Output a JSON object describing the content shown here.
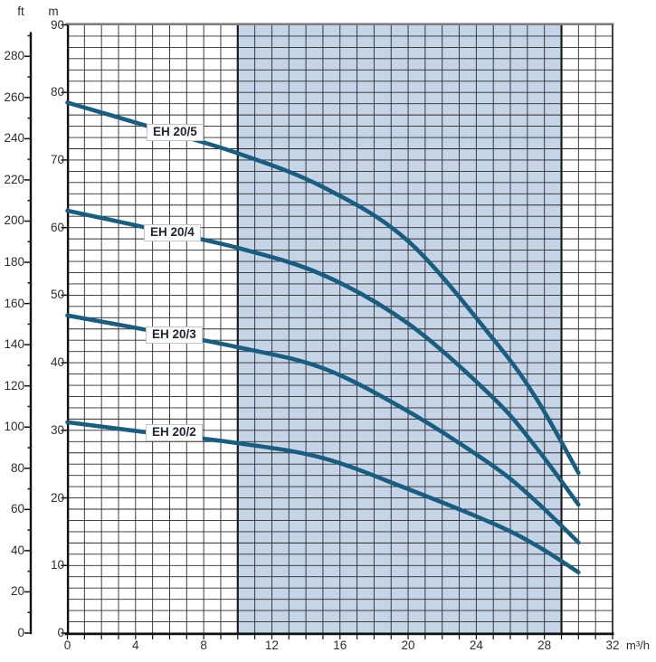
{
  "chart_data": {
    "type": "line",
    "title": "",
    "x_axis": {
      "unit_label": "m³/h",
      "min": 0,
      "max": 32,
      "major_tick_step": 4,
      "minor_tick_step": 1,
      "tick_labels": [
        "0",
        "4",
        "8",
        "12",
        "16",
        "20",
        "24",
        "28",
        "32"
      ]
    },
    "y_axis_primary": {
      "unit_label": "m",
      "min": 0,
      "max": 90,
      "tick_step": 10,
      "tick_labels": [
        "0",
        "10",
        "20",
        "30",
        "40",
        "50",
        "60",
        "70",
        "80",
        "90"
      ]
    },
    "y_axis_secondary": {
      "unit_label": "ft",
      "min": 0,
      "max": 290,
      "label_step": 20,
      "minor_tick_step": 10,
      "tick_labels": [
        "0",
        "20",
        "40",
        "60",
        "80",
        "100",
        "120",
        "140",
        "160",
        "180",
        "200",
        "220",
        "240",
        "260",
        "280"
      ],
      "ft_per_m": 3.28084
    },
    "recommended_range_band": {
      "from_q": 10,
      "to_q": 29
    },
    "series": [
      {
        "name": "EH 20/5",
        "points_q_h": [
          [
            0,
            78.5
          ],
          [
            5,
            74.8
          ],
          [
            10,
            71.0
          ],
          [
            15,
            66.0
          ],
          [
            20,
            58.0
          ],
          [
            25,
            43.5
          ],
          [
            27.5,
            34.8
          ],
          [
            30,
            23.7
          ]
        ]
      },
      {
        "name": "EH 20/4",
        "points_q_h": [
          [
            0,
            62.5
          ],
          [
            5,
            59.8
          ],
          [
            10,
            57.0
          ],
          [
            15,
            53.0
          ],
          [
            20,
            45.8
          ],
          [
            25,
            34.8
          ],
          [
            27.5,
            27.5
          ],
          [
            30,
            19.0
          ]
        ]
      },
      {
        "name": "EH 20/3",
        "points_q_h": [
          [
            0,
            47.0
          ],
          [
            5,
            44.7
          ],
          [
            10,
            42.3
          ],
          [
            15,
            39.2
          ],
          [
            20,
            32.8
          ],
          [
            25,
            24.7
          ],
          [
            27.5,
            19.5
          ],
          [
            30,
            13.4
          ]
        ]
      },
      {
        "name": "EH 20/2",
        "points_q_h": [
          [
            0,
            31.2
          ],
          [
            5,
            29.6
          ],
          [
            10,
            28.1
          ],
          [
            15,
            25.9
          ],
          [
            20,
            21.3
          ],
          [
            25,
            16.2
          ],
          [
            27.5,
            13.0
          ],
          [
            30,
            9.0
          ]
        ]
      }
    ],
    "grid": {
      "vertical_step_q": 1,
      "horizontal_divisions": 54
    },
    "colors": {
      "curve": "#175e80",
      "band_fill": "#c6d4e8",
      "band_border": "#1c1c1c",
      "grid_line": "#2b2b2b",
      "axis_line": "#111111",
      "top_border": "#7d7d7d",
      "label_text": "#2e2e2e"
    }
  }
}
